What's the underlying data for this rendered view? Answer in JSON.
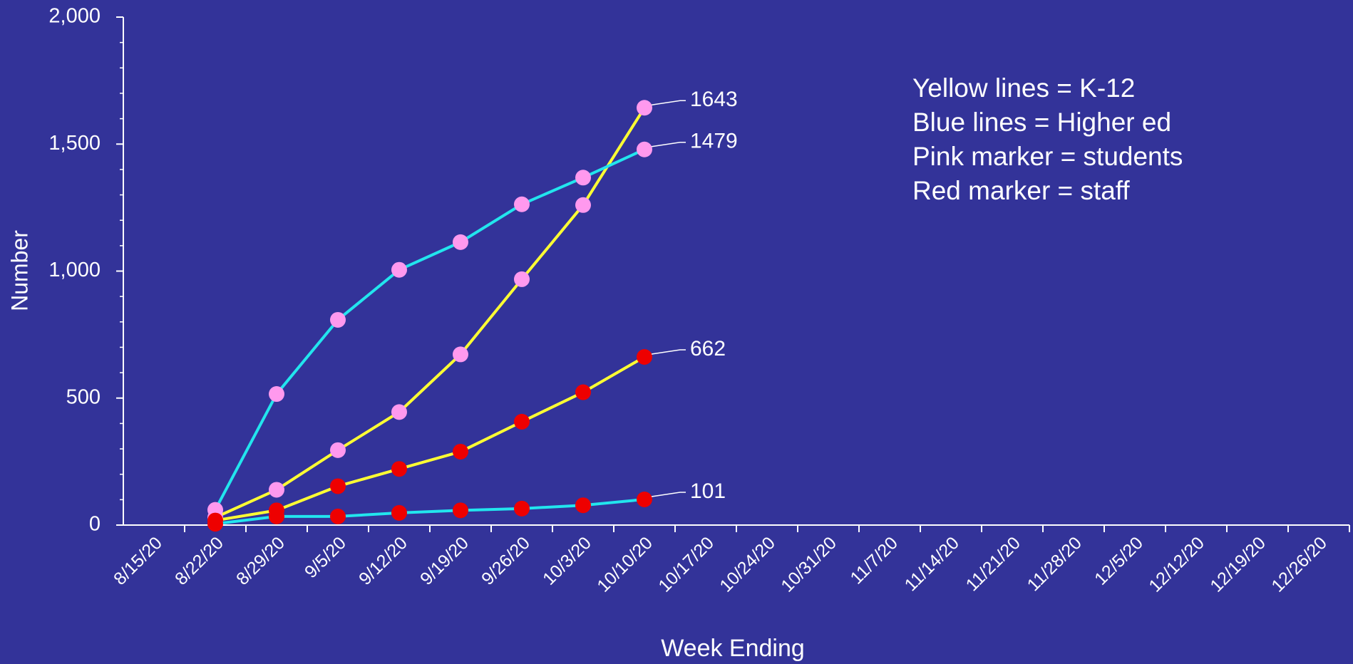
{
  "chart_data": {
    "type": "line",
    "y_label": "Number",
    "x_label": "Week Ending",
    "categories": [
      "8/15/20",
      "8/22/20",
      "8/29/20",
      "9/5/20",
      "9/12/20",
      "9/19/20",
      "9/26/20",
      "10/3/20",
      "10/10/20",
      "10/17/20",
      "10/24/20",
      "10/31/20",
      "11/7/20",
      "11/14/20",
      "11/21/20",
      "11/28/20",
      "12/5/20",
      "12/12/20",
      "12/19/20",
      "12/26/20"
    ],
    "series": [
      {
        "color": "#ffff33",
        "marker_color": "#ff99ee",
        "end_label": true,
        "values": [
          null,
          30,
          139,
          295,
          445,
          672,
          968,
          1260,
          1643,
          null,
          null,
          null,
          null,
          null,
          null,
          null,
          null,
          null,
          null,
          null
        ]
      },
      {
        "color": "#22e5ee",
        "marker_color": "#ff99ee",
        "end_label": true,
        "values": [
          null,
          60,
          516,
          808,
          1005,
          1114,
          1263,
          1368,
          1479,
          null,
          null,
          null,
          null,
          null,
          null,
          null,
          null,
          null,
          null,
          null
        ]
      },
      {
        "color": "#ffff33",
        "marker_color": "#ee0000",
        "end_label": true,
        "values": [
          null,
          18,
          58,
          153,
          221,
          289,
          407,
          523,
          662,
          null,
          null,
          null,
          null,
          null,
          null,
          null,
          null,
          null,
          null,
          null
        ]
      },
      {
        "color": "#22e5ee",
        "marker_color": "#ee0000",
        "end_label": true,
        "values": [
          null,
          5,
          34,
          34,
          48,
          58,
          65,
          78,
          101,
          null,
          null,
          null,
          null,
          null,
          null,
          null,
          null,
          null,
          null,
          null
        ]
      }
    ],
    "ylim": [
      0,
      2000
    ],
    "yticks": [
      0,
      500,
      {
        "value": 1000,
        "label": "1,000"
      },
      {
        "value": 1500,
        "label": "1,500"
      },
      {
        "value": 2000,
        "label": "2,000"
      }
    ],
    "minor_tick_interval": 100,
    "annotations": [
      "Yellow lines = K-12",
      "Blue lines = Higher ed",
      "Pink marker = students",
      "Red marker = staff"
    ]
  }
}
